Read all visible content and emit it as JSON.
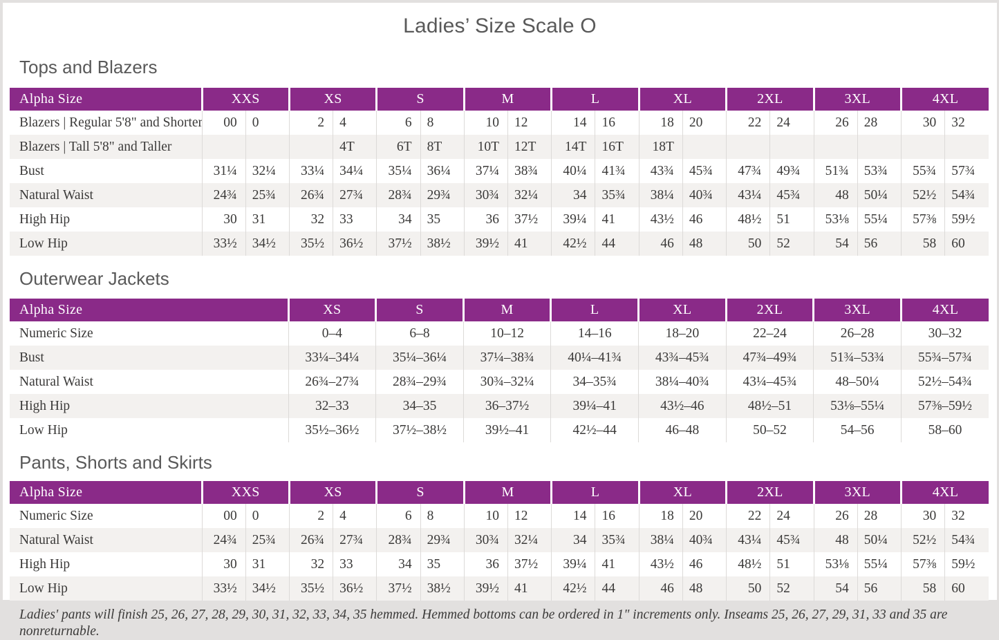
{
  "page": {
    "title": "Ladies’ Size Scale O",
    "footnote": "Ladies' pants will finish 25, 26, 27, 28, 29, 30, 31, 32, 33, 34, 35 hemmed. Hemmed bottoms can be ordered in 1\" increments only. Inseams 25, 26, 27, 29, 31, 33 and 35 are nonreturnable."
  },
  "colors": {
    "header_purple": "#8a2a88",
    "row_stripe": "#f3f1ef",
    "grid_line": "#dcdad8",
    "heading_text": "#595959",
    "body_text": "#3b3a39"
  },
  "sections": [
    {
      "heading": "Tops and Blazers",
      "table": {
        "type": "paired",
        "corner_label": "Alpha Size",
        "groups": [
          "XXS",
          "XS",
          "S",
          "M",
          "L",
          "XL",
          "2XL",
          "3XL",
          "4XL"
        ],
        "rows": [
          {
            "label": "Blazers | Regular 5'8\" and Shorter",
            "pairs": [
              [
                "00",
                "0"
              ],
              [
                "2",
                "4"
              ],
              [
                "6",
                "8"
              ],
              [
                "10",
                "12"
              ],
              [
                "14",
                "16"
              ],
              [
                "18",
                "20"
              ],
              [
                "22",
                "24"
              ],
              [
                "26",
                "28"
              ],
              [
                "30",
                "32"
              ]
            ]
          },
          {
            "label": "Blazers | Tall 5'8\" and Taller",
            "pairs": [
              [
                "",
                ""
              ],
              [
                "",
                "4T"
              ],
              [
                "6T",
                "8T"
              ],
              [
                "10T",
                "12T"
              ],
              [
                "14T",
                "16T"
              ],
              [
                "18T",
                ""
              ],
              [
                "",
                ""
              ],
              [
                "",
                ""
              ],
              [
                "",
                ""
              ]
            ]
          },
          {
            "label": "Bust",
            "pairs": [
              [
                "31¼",
                "32¼"
              ],
              [
                "33¼",
                "34¼"
              ],
              [
                "35¼",
                "36¼"
              ],
              [
                "37¼",
                "38¾"
              ],
              [
                "40¼",
                "41¾"
              ],
              [
                "43¾",
                "45¾"
              ],
              [
                "47¾",
                "49¾"
              ],
              [
                "51¾",
                "53¾"
              ],
              [
                "55¾",
                "57¾"
              ]
            ]
          },
          {
            "label": "Natural Waist",
            "pairs": [
              [
                "24¾",
                "25¾"
              ],
              [
                "26¾",
                "27¾"
              ],
              [
                "28¾",
                "29¾"
              ],
              [
                "30¾",
                "32¼"
              ],
              [
                "34",
                "35¾"
              ],
              [
                "38¼",
                "40¾"
              ],
              [
                "43¼",
                "45¾"
              ],
              [
                "48",
                "50¼"
              ],
              [
                "52½",
                "54¾"
              ]
            ]
          },
          {
            "label": "High Hip",
            "pairs": [
              [
                "30",
                "31"
              ],
              [
                "32",
                "33"
              ],
              [
                "34",
                "35"
              ],
              [
                "36",
                "37½"
              ],
              [
                "39¼",
                "41"
              ],
              [
                "43½",
                "46"
              ],
              [
                "48½",
                "51"
              ],
              [
                "53⅛",
                "55¼"
              ],
              [
                "57⅜",
                "59½"
              ]
            ]
          },
          {
            "label": "Low Hip",
            "pairs": [
              [
                "33½",
                "34½"
              ],
              [
                "35½",
                "36½"
              ],
              [
                "37½",
                "38½"
              ],
              [
                "39½",
                "41"
              ],
              [
                "42½",
                "44"
              ],
              [
                "46",
                "48"
              ],
              [
                "50",
                "52"
              ],
              [
                "54",
                "56"
              ],
              [
                "58",
                "60"
              ]
            ]
          }
        ]
      }
    },
    {
      "heading": "Outerwear Jackets",
      "table": {
        "type": "range",
        "corner_label": "Alpha Size",
        "groups": [
          "XS",
          "S",
          "M",
          "L",
          "XL",
          "2XL",
          "3XL",
          "4XL"
        ],
        "rows": [
          {
            "label": "Numeric Size",
            "values": [
              "0–4",
              "6–8",
              "10–12",
              "14–16",
              "18–20",
              "22–24",
              "26–28",
              "30–32"
            ]
          },
          {
            "label": "Bust",
            "values": [
              "33¼–34¼",
              "35¼–36¼",
              "37¼–38¾",
              "40¼–41¾",
              "43¾–45¾",
              "47¾–49¾",
              "51¾–53¾",
              "55¾–57¾"
            ]
          },
          {
            "label": "Natural Waist",
            "values": [
              "26¾–27¾",
              "28¾–29¾",
              "30¾–32¼",
              "34–35¾",
              "38¼–40¾",
              "43¼–45¾",
              "48–50¼",
              "52½–54¾"
            ]
          },
          {
            "label": "High Hip",
            "values": [
              "32–33",
              "34–35",
              "36–37½",
              "39¼–41",
              "43½–46",
              "48½–51",
              "53⅛–55¼",
              "57⅜–59½"
            ]
          },
          {
            "label": "Low Hip",
            "values": [
              "35½–36½",
              "37½–38½",
              "39½–41",
              "42½–44",
              "46–48",
              "50–52",
              "54–56",
              "58–60"
            ]
          }
        ]
      }
    },
    {
      "heading": "Pants, Shorts and Skirts",
      "table": {
        "type": "paired",
        "corner_label": "Alpha Size",
        "groups": [
          "XXS",
          "XS",
          "S",
          "M",
          "L",
          "XL",
          "2XL",
          "3XL",
          "4XL"
        ],
        "rows": [
          {
            "label": "Numeric Size",
            "pairs": [
              [
                "00",
                "0"
              ],
              [
                "2",
                "4"
              ],
              [
                "6",
                "8"
              ],
              [
                "10",
                "12"
              ],
              [
                "14",
                "16"
              ],
              [
                "18",
                "20"
              ],
              [
                "22",
                "24"
              ],
              [
                "26",
                "28"
              ],
              [
                "30",
                "32"
              ]
            ]
          },
          {
            "label": "Natural Waist",
            "pairs": [
              [
                "24¾",
                "25¾"
              ],
              [
                "26¾",
                "27¾"
              ],
              [
                "28¾",
                "29¾"
              ],
              [
                "30¾",
                "32¼"
              ],
              [
                "34",
                "35¾"
              ],
              [
                "38¼",
                "40¾"
              ],
              [
                "43¼",
                "45¾"
              ],
              [
                "48",
                "50¼"
              ],
              [
                "52½",
                "54¾"
              ]
            ]
          },
          {
            "label": "High Hip",
            "pairs": [
              [
                "30",
                "31"
              ],
              [
                "32",
                "33"
              ],
              [
                "34",
                "35"
              ],
              [
                "36",
                "37½"
              ],
              [
                "39¼",
                "41"
              ],
              [
                "43½",
                "46"
              ],
              [
                "48½",
                "51"
              ],
              [
                "53⅛",
                "55¼"
              ],
              [
                "57⅜",
                "59½"
              ]
            ]
          },
          {
            "label": "Low Hip",
            "pairs": [
              [
                "33½",
                "34½"
              ],
              [
                "35½",
                "36½"
              ],
              [
                "37½",
                "38½"
              ],
              [
                "39½",
                "41"
              ],
              [
                "42½",
                "44"
              ],
              [
                "46",
                "48"
              ],
              [
                "50",
                "52"
              ],
              [
                "54",
                "56"
              ],
              [
                "58",
                "60"
              ]
            ]
          }
        ]
      }
    }
  ]
}
